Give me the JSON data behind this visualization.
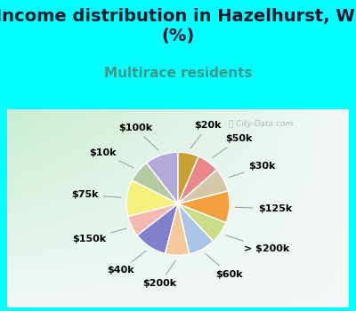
{
  "title": "Income distribution in Hazelhurst, WI\n(%)",
  "subtitle": "Multirace residents",
  "labels": [
    "$100k",
    "$10k",
    "$75k",
    "$150k",
    "$40k",
    "$200k",
    "$60k",
    "> $200k",
    "$125k",
    "$30k",
    "$50k",
    "$20k"
  ],
  "sizes": [
    10.5,
    7.0,
    11.5,
    6.5,
    10.5,
    7.5,
    8.5,
    7.0,
    10.0,
    7.5,
    7.0,
    6.5
  ],
  "colors": [
    "#b3a8d8",
    "#b3c9a0",
    "#f5f07a",
    "#f4b8b0",
    "#8080cc",
    "#f5c89a",
    "#aac4e8",
    "#ccdd88",
    "#f5a040",
    "#d4c8a8",
    "#e88888",
    "#c8a030"
  ],
  "bg_cyan": "#00ffff",
  "title_fontsize": 14,
  "subtitle_fontsize": 11,
  "subtitle_color": "#3a9a8a",
  "label_fontsize": 8,
  "startangle": 90,
  "wedge_lw": 1.0,
  "wedge_ec": "white",
  "watermark": "City-Data.com",
  "watermark_color": "#aaaaaa",
  "title_color": "#1a1a2e"
}
